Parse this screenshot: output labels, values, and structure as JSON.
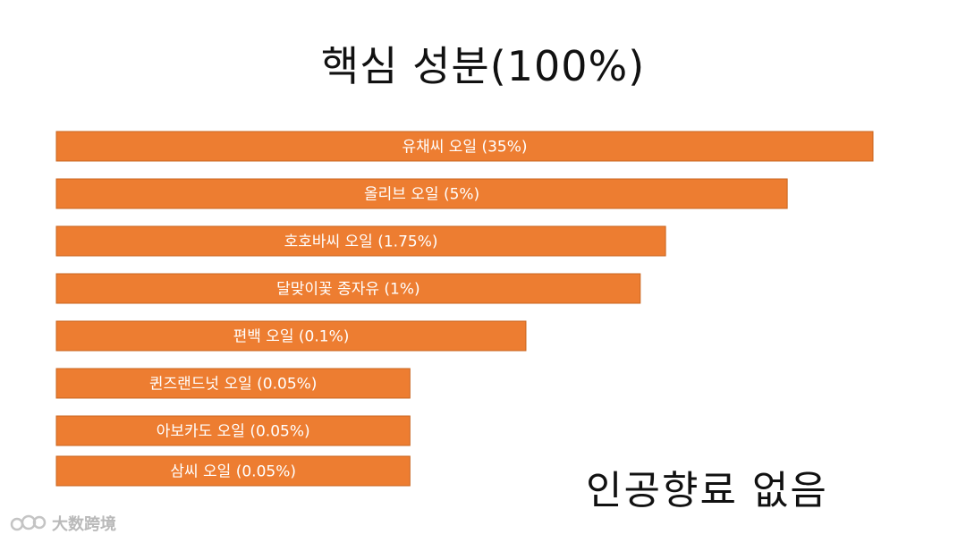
{
  "chart_data": {
    "type": "bar",
    "orientation": "horizontal",
    "title": "핵심 성분(100%)",
    "bar_color": "#ED7D31",
    "bars": [
      {
        "label": "유채씨 오일 (35%)",
        "value": 35
      },
      {
        "label": "올리브 오일 (5%)",
        "value": 5
      },
      {
        "label": "호호바씨 오일 (1.75%)",
        "value": 1.75
      },
      {
        "label": "달맞이꽃 종자유 (1%)",
        "value": 1
      },
      {
        "label": "편백 오일 (0.1%)",
        "value": 0.1
      },
      {
        "label": "퀸즈랜드넛 오일 (0.05%)",
        "value": 0.05
      },
      {
        "label": "아보카도 오일 (0.05%)",
        "value": 0.05
      },
      {
        "label": "삼씨 오일 (0.05%)",
        "value": 0.05
      }
    ],
    "display_scale": [
      1.0,
      0.895,
      0.746,
      0.715,
      0.575,
      0.433,
      0.433,
      0.433
    ]
  },
  "note": "인공향료 없음",
  "watermark": {
    "icon": "camera-lens-icon",
    "text": "大数跨境"
  }
}
